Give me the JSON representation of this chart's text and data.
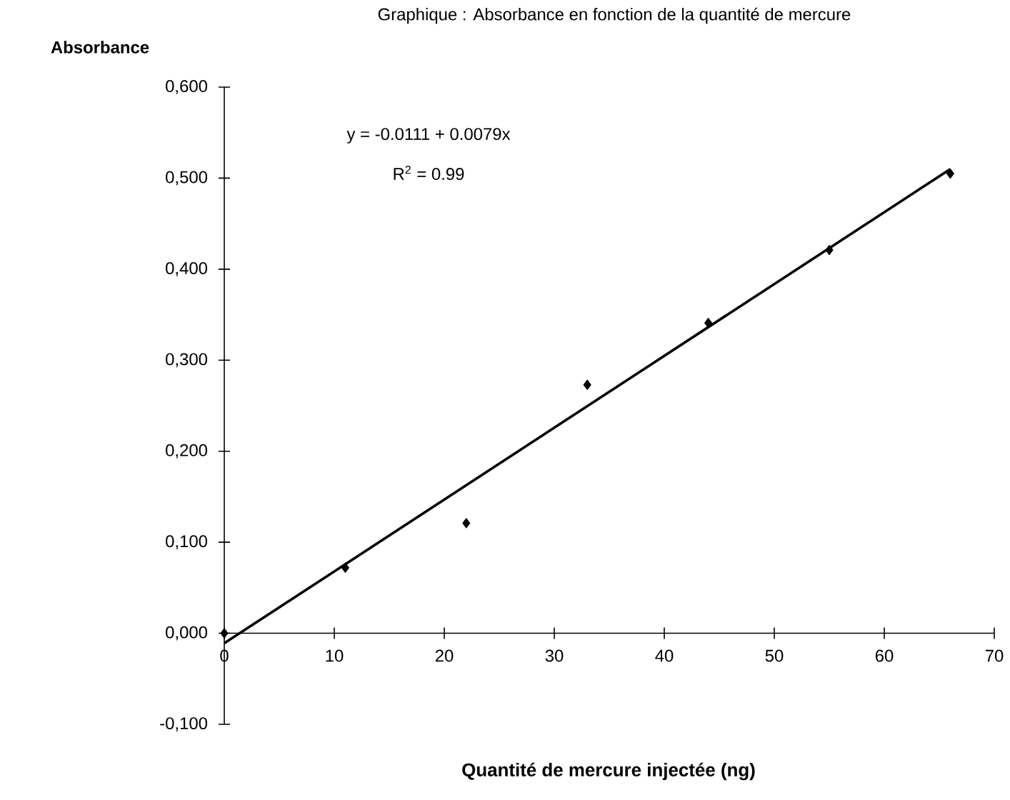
{
  "chart_data": {
    "type": "scatter",
    "title": "Graphique : Absorbance en fonction de la quantité de mercure",
    "xlabel": "Quantité de mercure injectée (ng)",
    "ylabel": "Absorbance",
    "annotations": [
      "y = -0.0111 + 0.0079x",
      "R$^{2}$ = 0.99"
    ],
    "xlim": [
      0,
      70
    ],
    "xticks": [
      0,
      10,
      20,
      30,
      40,
      50,
      60,
      70
    ],
    "ylim": [
      -0.1,
      0.6
    ],
    "yticks": [
      {
        "value": -0.1,
        "label": "-0,100"
      },
      {
        "value": 0,
        "label": "0,000"
      },
      {
        "value": 0.1,
        "label": "0,100"
      },
      {
        "value": 0.2,
        "label": "0,200"
      },
      {
        "value": 0.3,
        "label": "0,300"
      },
      {
        "value": 0.4,
        "label": "0,400"
      },
      {
        "value": 0.5,
        "label": "0,500"
      },
      {
        "value": 0.6,
        "label": "0,600"
      }
    ],
    "series": [
      {
        "color": "#000000",
        "marker": "diamond",
        "x": [
          0,
          11,
          22,
          33,
          44,
          55,
          66
        ],
        "values": [
          0.0,
          0.072,
          0.121,
          0.273,
          0.341,
          0.421,
          0.505
        ]
      },
      {
        "type": "line",
        "color": "#000000",
        "marker": "none",
        "line_style": "solid",
        "x": [
          0,
          66
        ],
        "values": [
          -0.011,
          0.51
        ]
      }
    ]
  }
}
